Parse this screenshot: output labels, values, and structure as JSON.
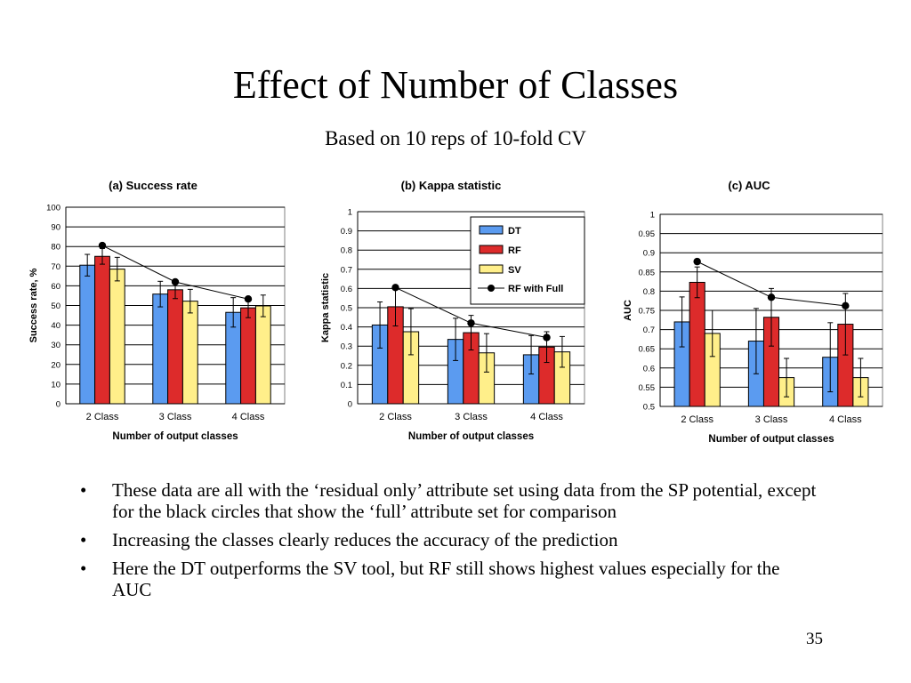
{
  "slide": {
    "title": "Effect of Number of Classes",
    "subtitle": "Based on 10 reps of 10-fold CV",
    "page_number": "35",
    "bullet_glyph": "•",
    "bullets": [
      "These data are all with the ‘residual only’ attribute set using data from the SP potential, except for the black circles that show the ‘full’ attribute set for comparison",
      "Increasing the classes clearly reduces the accuracy of the prediction",
      "Here the DT outperforms the SV tool, but RF still shows highest values especially for the AUC"
    ]
  },
  "colors": {
    "DT": "#5b9bf0",
    "RF": "#dd2b2b",
    "SV": "#ffef8a",
    "line": "#000000",
    "grid": "#000000"
  },
  "chart_data": [
    {
      "type": "bar",
      "title": "(a) Success rate",
      "xlabel": "Number of output classes",
      "ylabel": "Success rate, %",
      "categories": [
        "2 Class",
        "3 Class",
        "4 Class"
      ],
      "ylim": [
        0,
        100
      ],
      "yticks": [
        0,
        10,
        20,
        30,
        40,
        50,
        60,
        70,
        80,
        90,
        100
      ],
      "ytick_labels": [
        "0",
        "10",
        "20",
        "30",
        "40",
        "50",
        "60",
        "70",
        "80",
        "90",
        "100"
      ],
      "grid": true,
      "legend": "none",
      "series": [
        {
          "name": "DT",
          "values": [
            70.5,
            55.8,
            46.5
          ],
          "err": [
            5.5,
            6.5,
            7.5
          ]
        },
        {
          "name": "RF",
          "values": [
            75,
            58,
            48.8
          ],
          "err": [
            4,
            4.5,
            5
          ]
        },
        {
          "name": "SV",
          "values": [
            68.5,
            52.2,
            49.8
          ],
          "err": [
            6,
            6,
            5.5
          ]
        }
      ],
      "line": {
        "name": "RF with Full",
        "values": [
          80.5,
          62,
          53.3
        ]
      }
    },
    {
      "type": "bar",
      "title": "(b) Kappa statistic",
      "xlabel": "Number of output classes",
      "ylabel": "Kappa statistic",
      "categories": [
        "2 Class",
        "3 Class",
        "4 Class"
      ],
      "ylim": [
        0,
        1
      ],
      "yticks": [
        0,
        0.1,
        0.2,
        0.3,
        0.4,
        0.5,
        0.6,
        0.7,
        0.8,
        0.9,
        1
      ],
      "ytick_labels": [
        "0",
        "0.1",
        "0.2",
        "0.3",
        "0.4",
        "0.5",
        "0.6",
        "0.7",
        "0.8",
        "0.9",
        "1"
      ],
      "grid": true,
      "legend": "top-right",
      "series": [
        {
          "name": "DT",
          "values": [
            0.41,
            0.335,
            0.255
          ],
          "err": [
            0.12,
            0.11,
            0.1
          ]
        },
        {
          "name": "RF",
          "values": [
            0.505,
            0.37,
            0.295
          ],
          "err": [
            0.1,
            0.09,
            0.08
          ]
        },
        {
          "name": "SV",
          "values": [
            0.375,
            0.265,
            0.27
          ],
          "err": [
            0.12,
            0.1,
            0.08
          ]
        }
      ],
      "line": {
        "name": "RF with Full",
        "values": [
          0.605,
          0.42,
          0.345
        ]
      }
    },
    {
      "type": "bar",
      "title": "(c) AUC",
      "xlabel": "Number of output classes",
      "ylabel": "AUC",
      "categories": [
        "2 Class",
        "3 Class",
        "4 Class"
      ],
      "ylim": [
        0.5,
        1
      ],
      "yticks": [
        0.5,
        0.55,
        0.6,
        0.65,
        0.7,
        0.75,
        0.8,
        0.85,
        0.9,
        0.95,
        1
      ],
      "ytick_labels": [
        "0.5",
        "0.55",
        "0.6",
        "0.65",
        "0.7",
        "0.75",
        "0.8",
        "0.85",
        "0.9",
        "0.95",
        "1"
      ],
      "grid": true,
      "legend": "none",
      "series": [
        {
          "name": "DT",
          "values": [
            0.72,
            0.67,
            0.628
          ],
          "err": [
            0.065,
            0.085,
            0.09
          ]
        },
        {
          "name": "RF",
          "values": [
            0.823,
            0.732,
            0.714
          ],
          "err": [
            0.04,
            0.075,
            0.08
          ]
        },
        {
          "name": "SV",
          "values": [
            0.69,
            0.575,
            0.575
          ],
          "err": [
            0.06,
            0.05,
            0.05
          ]
        }
      ],
      "line": {
        "name": "RF with Full",
        "values": [
          0.877,
          0.784,
          0.762
        ]
      }
    }
  ]
}
